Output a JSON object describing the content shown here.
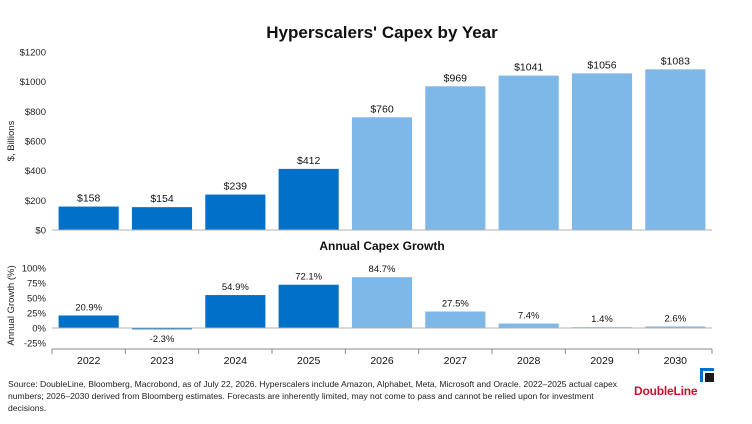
{
  "colors": {
    "actual": "#0070c8",
    "estimate": "#7db8e8",
    "axis_text": "#222222",
    "brand_red": "#c8102e",
    "brand_blue": "#0070c8"
  },
  "chart_data": [
    {
      "type": "bar",
      "title": "Hyperscalers' Capex by Year",
      "ylabel": "$, Billions",
      "xlabel": "",
      "categories": [
        "2022",
        "2023",
        "2024",
        "2025",
        "2026",
        "2027",
        "2028",
        "2029",
        "2030"
      ],
      "values": [
        158,
        154,
        239,
        412,
        760,
        969,
        1041,
        1056,
        1083
      ],
      "labels": [
        "$158",
        "$154",
        "$239",
        "$412",
        "$760",
        "$969",
        "$1041",
        "$1056",
        "$1083"
      ],
      "estimate_from_index": 4,
      "ylim": [
        0,
        1200
      ],
      "yticks": [
        0,
        200,
        400,
        600,
        800,
        1000,
        1200
      ],
      "ytick_labels": [
        "$0",
        "$200",
        "$400",
        "$600",
        "$800",
        "$1000",
        "$1200"
      ],
      "grid": false
    },
    {
      "type": "bar",
      "title": "Annual Capex Growth",
      "ylabel": "Annual Growth (%)",
      "xlabel": "",
      "categories": [
        "2022",
        "2023",
        "2024",
        "2025",
        "2026",
        "2027",
        "2028",
        "2029",
        "2030"
      ],
      "values": [
        20.9,
        -2.3,
        54.9,
        72.1,
        84.7,
        27.5,
        7.4,
        1.4,
        2.6
      ],
      "labels": [
        "20.9%",
        "-2.3%",
        "54.9%",
        "72.1%",
        "84.7%",
        "27.5%",
        "7.4%",
        "1.4%",
        "2.6%"
      ],
      "estimate_from_index": 4,
      "ylim": [
        -25,
        100
      ],
      "yticks": [
        -25,
        0,
        25,
        50,
        75,
        100
      ],
      "ytick_labels": [
        "-25%",
        "0%",
        "25%",
        "50%",
        "75%",
        "100%"
      ],
      "grid": false
    }
  ],
  "footer": {
    "source_text": "Source: DoubleLine, Bloomberg, Macrobond, as of July 22, 2026. Hyperscalers include Amazon, Alphabet, Meta, Microsoft and Oracle. 2022–2025 actual capex numbers; 2026–2030 derived from Bloomberg estimates. Forecasts are inherently limited, may not come to pass and cannot be relied upon for investment decisions.",
    "brand": "DoubleLine"
  }
}
